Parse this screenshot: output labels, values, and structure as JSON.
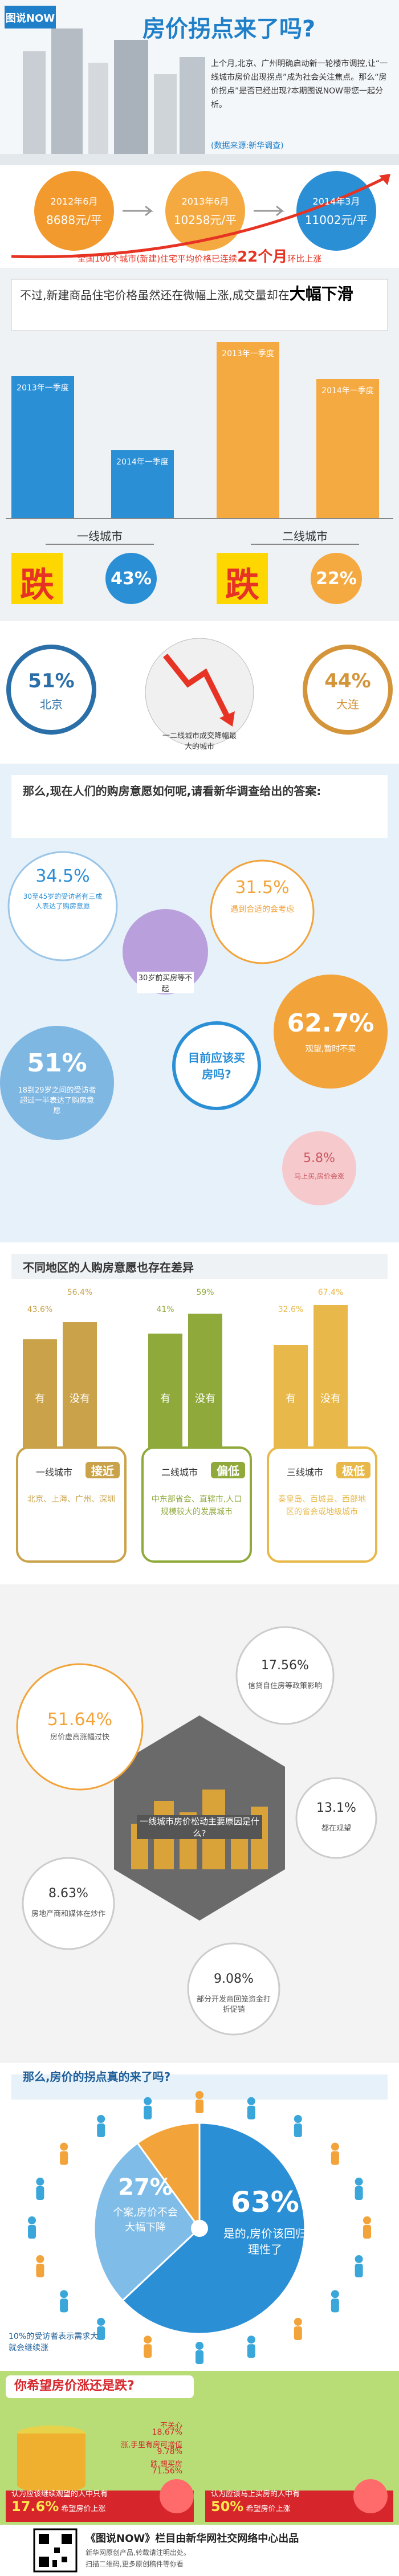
{
  "header": {
    "brand": "图说NOW",
    "title": "房价拐点来了吗?",
    "intro": "上个月,北京、广州明确启动新一轮楼市调控,让“一线城市房价出现拐点”成为社会关注焦点。那么“房价拐点”是否已经出现?本期图说NOW带您一起分析。",
    "source": "(数据来源:新华调查)"
  },
  "price_trend": {
    "points": [
      {
        "date": "2012年6月",
        "price": "8688元/平"
      },
      {
        "date": "2013年6月",
        "price": "10258元/平"
      },
      {
        "date": "2014年3月",
        "price": "11002元/平"
      }
    ],
    "note_before": "全国100个城市(新建)住宅平均价格已连续",
    "months": "22个月",
    "note_after": "环比上涨"
  },
  "volume": {
    "heading": "不过,新建商品住宅价格虽然还在微幅上涨,成交量却在",
    "heading_emph": "大幅下滑",
    "cities": [
      {
        "name": "一线城市",
        "bar_2013": "2013年一季度",
        "bar_2014": "2014年一季度",
        "drop": "跌",
        "percent": "43%"
      },
      {
        "name": "二线城市",
        "bar_2013": "2013年一季度",
        "bar_2014": "2014年一季度",
        "drop": "跌",
        "percent": "22%"
      }
    ]
  },
  "biggest_drop": {
    "left": {
      "percent": "51%",
      "city": "北京"
    },
    "right": {
      "percent": "44%",
      "city": "大连"
    },
    "caption": "一二线城市成交降幅最大的城市"
  },
  "intent": {
    "heading": "那么,现在人们的购房意愿如何呢,请看新华调查给出的答案:",
    "age_30_45": {
      "percent": "34.5%",
      "text": "30至45岁的受访者有三成人表达了购房意愿"
    },
    "age_18_29": {
      "percent": "51%",
      "text": "18到29岁之间的受访者超过一半表达了购房意愿"
    },
    "center": "30岁前买房等不起",
    "question": "目前应该买房吗?",
    "options": [
      {
        "percent": "31.5%",
        "text": "遇到合适的会考虑"
      },
      {
        "percent": "62.7%",
        "text": "观望,暂时不买"
      },
      {
        "percent": "5.8%",
        "text": "马上买,房价会涨"
      }
    ]
  },
  "regions": {
    "heading": "不同地区的人购房意愿也存在差异",
    "tiers": [
      {
        "name": "一线城市",
        "yes_percent": "43.6%",
        "no_percent": "56.4%",
        "yes": "有",
        "no": "没有",
        "level": "接近",
        "examples": "北京、上海、广州、深圳"
      },
      {
        "name": "二线城市",
        "yes_percent": "41%",
        "no_percent": "59%",
        "yes": "有",
        "no": "没有",
        "level": "偏低",
        "examples": "中东部省会、直辖市,人口规模较大的发展城市"
      },
      {
        "name": "三线城市",
        "yes_percent": "32.6%",
        "no_percent": "67.4%",
        "yes": "有",
        "no": "没有",
        "level": "极低",
        "examples": "秦皇岛、百城县、西部地区的省会或地级城市"
      }
    ]
  },
  "reasons": {
    "question": "一线城市房价松动主要原因是什么?",
    "items": [
      {
        "percent": "51.64%",
        "text": "房价虚高涨幅过快"
      },
      {
        "percent": "17.56%",
        "text": "信贷自住房等政策影响"
      },
      {
        "percent": "13.1%",
        "text": "都在观望"
      },
      {
        "percent": "8.63%",
        "text": "房地产商和媒体在炒作"
      },
      {
        "percent": "9.08%",
        "text": "部分开发商回笼资金打折促销"
      }
    ]
  },
  "turning_point": {
    "heading": "那么,房价的拐点真的来了吗?",
    "slices": [
      {
        "value": 63,
        "label": "63%",
        "text": "是的,房价该回归理性了"
      },
      {
        "value": 27,
        "label": "27%",
        "text": "个案,房价不会大幅下降"
      },
      {
        "value": 10,
        "text": "10%的受访者表示需求大就会继续涨"
      }
    ]
  },
  "wish": {
    "heading": "你希望房价涨还是跌?",
    "answers": [
      {
        "text": "不关心",
        "percent": "18.67%"
      },
      {
        "text": "涨,手里有房可增值",
        "percent": "9.78%"
      },
      {
        "text": "跌,想买房",
        "percent": "71.56%"
      }
    ],
    "wait": {
      "text": "认为应该继续观望的人中只有",
      "percent": "17.6%",
      "tail": "希望房价上涨"
    },
    "buy": {
      "text": "认为应该马上买房的人中有",
      "percent": "50%",
      "tail": "希望房价上涨"
    }
  },
  "footer": {
    "title": "《图说NOW》栏目由新华网社交网络中心出品",
    "line1": "新华网原创产品,转载请注明出处。",
    "line2": "扫描二维码,更多原创稿件等你看"
  }
}
